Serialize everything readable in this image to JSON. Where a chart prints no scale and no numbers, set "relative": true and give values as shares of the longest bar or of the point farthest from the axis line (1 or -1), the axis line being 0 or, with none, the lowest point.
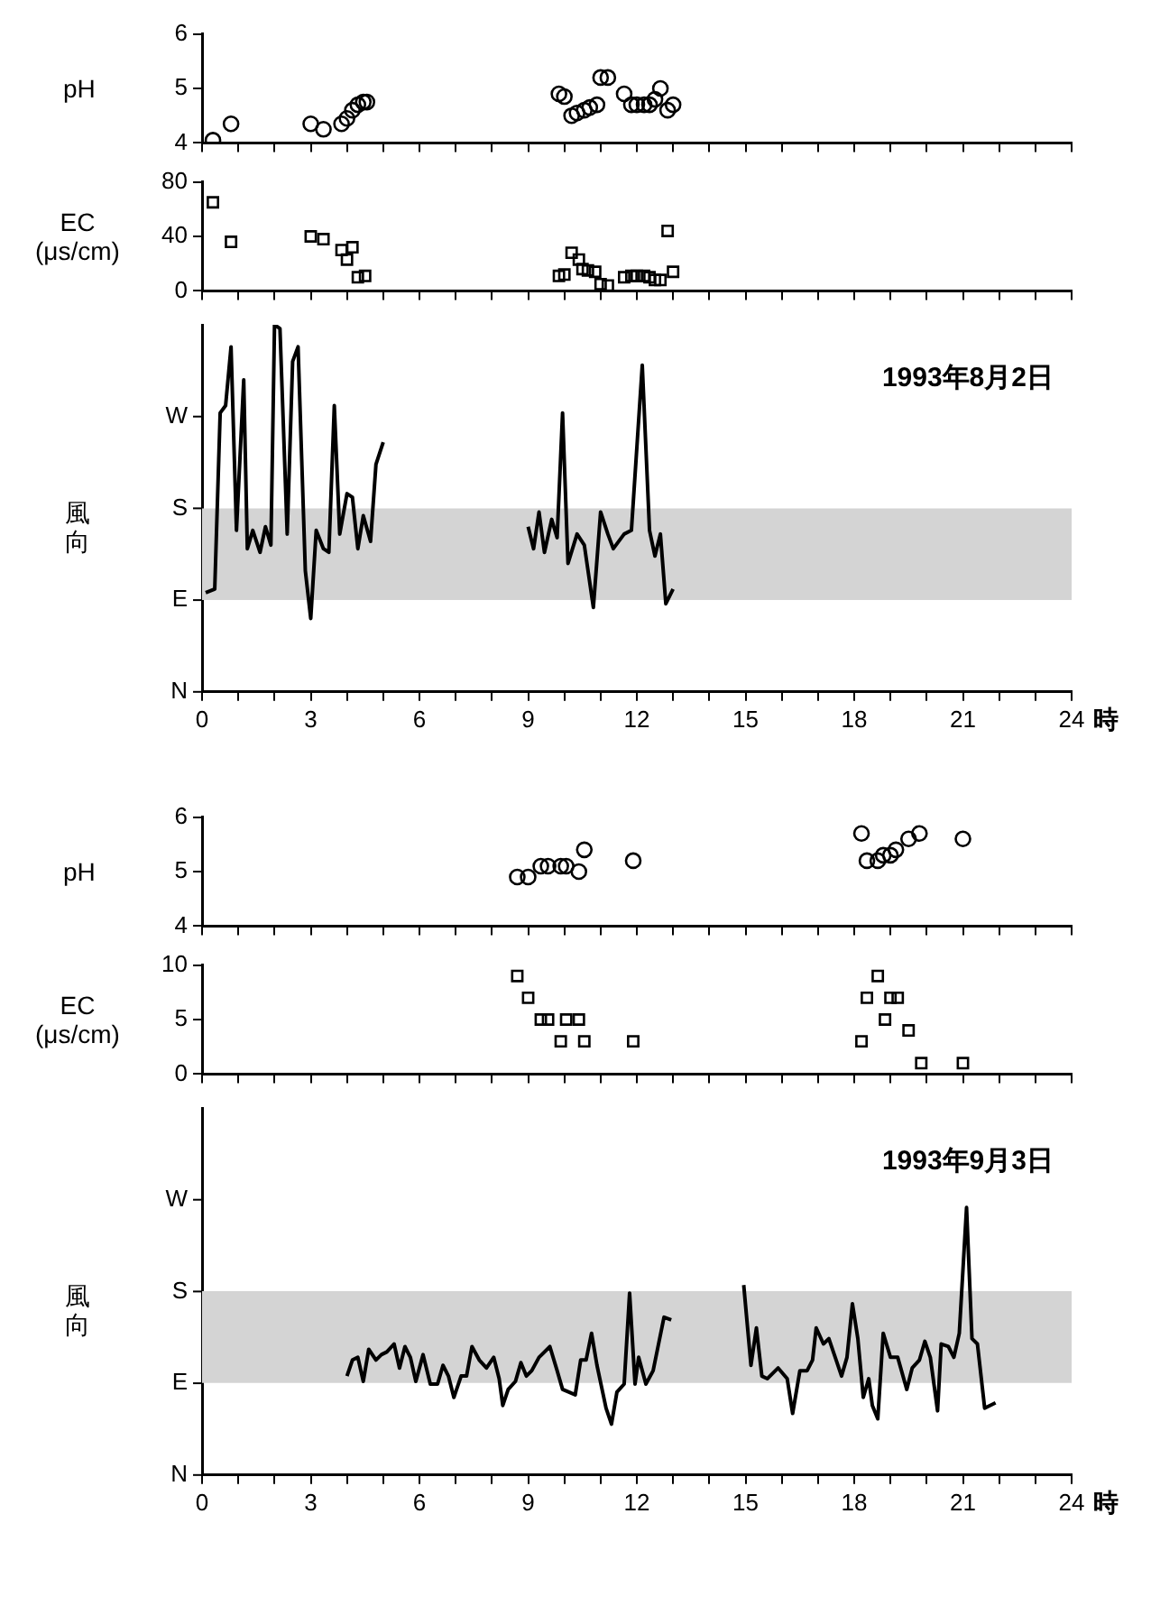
{
  "chart_data": [
    {
      "type": "scatter",
      "ylabel": "pH",
      "marker": "circle",
      "tick_labels": "y",
      "xlim": [
        0,
        24
      ],
      "ylim": [
        4,
        6
      ],
      "yticks": [
        4,
        5,
        6
      ],
      "xticks": [
        0,
        {
          "value": 1,
          "label": null
        },
        {
          "value": 2,
          "label": null
        },
        3,
        {
          "value": 4,
          "label": null
        },
        {
          "value": 5,
          "label": null
        },
        6,
        {
          "value": 7,
          "label": null
        },
        {
          "value": 8,
          "label": null
        },
        9,
        {
          "value": 10,
          "label": null
        },
        {
          "value": 11,
          "label": null
        },
        12,
        {
          "value": 13,
          "label": null
        },
        {
          "value": 14,
          "label": null
        },
        15,
        {
          "value": 16,
          "label": null
        },
        {
          "value": 17,
          "label": null
        },
        18,
        {
          "value": 19,
          "label": null
        },
        {
          "value": 20,
          "label": null
        },
        21,
        {
          "value": 22,
          "label": null
        },
        {
          "value": 23,
          "label": null
        },
        24
      ],
      "series": [
        {
          "color": "#000000",
          "x": [
            0.3,
            0.8,
            3.0,
            3.35,
            3.85,
            4.0,
            4.15,
            4.3,
            4.45,
            4.55,
            9.85,
            10.0,
            10.2,
            10.35,
            10.55,
            10.7,
            10.9,
            11.0,
            11.2,
            11.65,
            11.85,
            12.0,
            12.2,
            12.35,
            12.5,
            12.65,
            12.85,
            13.0
          ],
          "values": [
            4.05,
            4.35,
            4.35,
            4.25,
            4.35,
            4.45,
            4.6,
            4.7,
            4.75,
            4.75,
            4.9,
            4.85,
            4.5,
            4.55,
            4.6,
            4.65,
            4.7,
            5.2,
            5.2,
            4.9,
            4.7,
            4.7,
            4.7,
            4.7,
            4.8,
            5.0,
            4.6,
            4.7
          ]
        }
      ]
    },
    {
      "type": "scatter",
      "ylabel": "EC (μs/cm)",
      "marker": "square",
      "tick_labels": "y",
      "xlim": [
        0,
        24
      ],
      "ylim": [
        0,
        80
      ],
      "yticks": [
        0,
        40,
        80
      ],
      "xticks": [
        0,
        {
          "value": 1,
          "label": null
        },
        {
          "value": 2,
          "label": null
        },
        3,
        {
          "value": 4,
          "label": null
        },
        {
          "value": 5,
          "label": null
        },
        6,
        {
          "value": 7,
          "label": null
        },
        {
          "value": 8,
          "label": null
        },
        9,
        {
          "value": 10,
          "label": null
        },
        {
          "value": 11,
          "label": null
        },
        12,
        {
          "value": 13,
          "label": null
        },
        {
          "value": 14,
          "label": null
        },
        15,
        {
          "value": 16,
          "label": null
        },
        {
          "value": 17,
          "label": null
        },
        18,
        {
          "value": 19,
          "label": null
        },
        {
          "value": 20,
          "label": null
        },
        21,
        {
          "value": 22,
          "label": null
        },
        {
          "value": 23,
          "label": null
        },
        24
      ],
      "series": [
        {
          "color": "#000000",
          "x": [
            0.3,
            0.8,
            3.0,
            3.35,
            3.85,
            4.0,
            4.15,
            4.3,
            4.5,
            9.85,
            10.0,
            10.2,
            10.4,
            10.5,
            10.65,
            10.85,
            11.0,
            11.2,
            11.65,
            11.85,
            12.0,
            12.2,
            12.35,
            12.5,
            12.65,
            12.85,
            13.0
          ],
          "values": [
            65,
            36,
            40,
            38,
            30,
            23,
            32,
            10,
            11,
            11,
            12,
            28,
            23,
            16,
            15,
            14,
            5,
            4,
            10,
            11,
            11,
            11,
            10,
            8,
            8,
            44,
            14
          ]
        }
      ]
    },
    {
      "type": "line",
      "relative": true,
      "ylabel": "風向",
      "xlabel": "時",
      "marker": "none",
      "line_style": "solid",
      "xlim": [
        0,
        24
      ],
      "xticks": [
        0,
        {
          "value": 1,
          "label": null
        },
        {
          "value": 2,
          "label": null
        },
        3,
        {
          "value": 4,
          "label": null
        },
        {
          "value": 5,
          "label": null
        },
        6,
        {
          "value": 7,
          "label": null
        },
        {
          "value": 8,
          "label": null
        },
        9,
        {
          "value": 10,
          "label": null
        },
        {
          "value": 11,
          "label": null
        },
        12,
        {
          "value": 13,
          "label": null
        },
        {
          "value": 14,
          "label": null
        },
        15,
        {
          "value": 16,
          "label": null
        },
        {
          "value": 17,
          "label": null
        },
        18,
        {
          "value": 19,
          "label": null
        },
        {
          "value": 20,
          "label": null
        },
        21,
        {
          "value": 22,
          "label": null
        },
        {
          "value": 23,
          "label": null
        },
        24
      ],
      "bands": [
        {
          "axis": "y",
          "from": 0.25,
          "to": 0.5,
          "color": "#d4d4d4"
        }
      ],
      "annotations": [
        "1993年8月2日",
        "N",
        "E",
        "S",
        "W"
      ],
      "series": [
        {
          "color": "#000000",
          "x": [
            0.1,
            0.35,
            0.5,
            0.65,
            0.8,
            0.95,
            1.15,
            1.25,
            1.4,
            1.6,
            1.75,
            1.9,
            2.0,
            2.15,
            2.35,
            2.5,
            2.65,
            2.85,
            3.0,
            3.15,
            3.35,
            3.5,
            3.65,
            3.8,
            4.0,
            4.15,
            4.3,
            4.45,
            4.65,
            4.8,
            5.0
          ],
          "values": [
            0.27,
            0.28,
            0.76,
            0.78,
            0.94,
            0.44,
            0.85,
            0.39,
            0.44,
            0.38,
            0.45,
            0.4,
            1,
            0.99,
            0.43,
            0.9,
            0.94,
            0.33,
            0.2,
            0.44,
            0.39,
            0.38,
            0.78,
            0.43,
            0.54,
            0.53,
            0.39,
            0.48,
            0.41,
            0.62,
            0.68
          ]
        },
        {
          "color": "#000000",
          "x": [
            9.0,
            9.15,
            9.3,
            9.45,
            9.65,
            9.8,
            9.95,
            10.1,
            10.35,
            10.55,
            10.8,
            11.0,
            11.2,
            11.35,
            11.65,
            11.85,
            12.15,
            12.35,
            12.5,
            12.65,
            12.8,
            13.0
          ],
          "values": [
            0.45,
            0.39,
            0.49,
            0.38,
            0.47,
            0.42,
            0.76,
            0.35,
            0.43,
            0.4,
            0.23,
            0.49,
            0.43,
            0.39,
            0.43,
            0.44,
            0.89,
            0.44,
            0.37,
            0.43,
            0.24,
            0.28
          ]
        }
      ]
    },
    {
      "type": "scatter",
      "ylabel": "pH",
      "marker": "circle",
      "tick_labels": "y",
      "xlim": [
        0,
        24
      ],
      "ylim": [
        4,
        6
      ],
      "yticks": [
        4,
        5,
        6
      ],
      "xticks": [
        0,
        {
          "value": 1,
          "label": null
        },
        {
          "value": 2,
          "label": null
        },
        3,
        {
          "value": 4,
          "label": null
        },
        {
          "value": 5,
          "label": null
        },
        6,
        {
          "value": 7,
          "label": null
        },
        {
          "value": 8,
          "label": null
        },
        9,
        {
          "value": 10,
          "label": null
        },
        {
          "value": 11,
          "label": null
        },
        12,
        {
          "value": 13,
          "label": null
        },
        {
          "value": 14,
          "label": null
        },
        15,
        {
          "value": 16,
          "label": null
        },
        {
          "value": 17,
          "label": null
        },
        18,
        {
          "value": 19,
          "label": null
        },
        {
          "value": 20,
          "label": null
        },
        21,
        {
          "value": 22,
          "label": null
        },
        {
          "value": 23,
          "label": null
        },
        24
      ],
      "series": [
        {
          "color": "#000000",
          "x": [
            8.7,
            9.0,
            9.35,
            9.55,
            9.9,
            10.05,
            10.4,
            10.55,
            11.9,
            18.2,
            18.35,
            18.65,
            18.8,
            19.0,
            19.15,
            19.5,
            19.8,
            21.0
          ],
          "values": [
            4.9,
            4.9,
            5.1,
            5.1,
            5.1,
            5.1,
            5.0,
            5.4,
            5.2,
            5.7,
            5.2,
            5.2,
            5.3,
            5.3,
            5.4,
            5.6,
            5.7,
            5.6
          ]
        }
      ]
    },
    {
      "type": "scatter",
      "ylabel": "EC (μs/cm)",
      "marker": "square",
      "tick_labels": "y",
      "xlim": [
        0,
        24
      ],
      "ylim": [
        0,
        10
      ],
      "yticks": [
        0,
        5,
        10
      ],
      "xticks": [
        0,
        {
          "value": 1,
          "label": null
        },
        {
          "value": 2,
          "label": null
        },
        3,
        {
          "value": 4,
          "label": null
        },
        {
          "value": 5,
          "label": null
        },
        6,
        {
          "value": 7,
          "label": null
        },
        {
          "value": 8,
          "label": null
        },
        9,
        {
          "value": 10,
          "label": null
        },
        {
          "value": 11,
          "label": null
        },
        12,
        {
          "value": 13,
          "label": null
        },
        {
          "value": 14,
          "label": null
        },
        15,
        {
          "value": 16,
          "label": null
        },
        {
          "value": 17,
          "label": null
        },
        18,
        {
          "value": 19,
          "label": null
        },
        {
          "value": 20,
          "label": null
        },
        21,
        {
          "value": 22,
          "label": null
        },
        {
          "value": 23,
          "label": null
        },
        24
      ],
      "series": [
        {
          "color": "#000000",
          "x": [
            8.7,
            9.0,
            9.35,
            9.55,
            9.9,
            10.05,
            10.4,
            10.55,
            11.9,
            18.2,
            18.35,
            18.65,
            18.85,
            19.0,
            19.2,
            19.5,
            19.85,
            21.0
          ],
          "values": [
            9,
            7,
            5,
            5,
            3,
            5,
            5,
            3,
            3,
            3,
            7,
            9,
            5,
            7,
            7,
            4,
            1,
            1
          ]
        }
      ]
    },
    {
      "type": "line",
      "relative": true,
      "ylabel": "風向",
      "xlabel": "時",
      "marker": "none",
      "line_style": "solid",
      "xlim": [
        0,
        24
      ],
      "xticks": [
        0,
        {
          "value": 1,
          "label": null
        },
        {
          "value": 2,
          "label": null
        },
        3,
        {
          "value": 4,
          "label": null
        },
        {
          "value": 5,
          "label": null
        },
        6,
        {
          "value": 7,
          "label": null
        },
        {
          "value": 8,
          "label": null
        },
        9,
        {
          "value": 10,
          "label": null
        },
        {
          "value": 11,
          "label": null
        },
        12,
        {
          "value": 13,
          "label": null
        },
        {
          "value": 14,
          "label": null
        },
        15,
        {
          "value": 16,
          "label": null
        },
        {
          "value": 17,
          "label": null
        },
        18,
        {
          "value": 19,
          "label": null
        },
        {
          "value": 20,
          "label": null
        },
        21,
        {
          "value": 22,
          "label": null
        },
        {
          "value": 23,
          "label": null
        },
        24
      ],
      "bands": [
        {
          "axis": "y",
          "from": 0.344,
          "to": 0.687,
          "color": "#d4d4d4"
        }
      ],
      "annotations": [
        "1993年9月3日",
        "N",
        "E",
        "S",
        "W"
      ],
      "series": [
        {
          "color": "#000000",
          "x": [
            4.0,
            4.15,
            4.3,
            4.45,
            4.6,
            4.8,
            4.95,
            5.1,
            5.3,
            5.45,
            5.6,
            5.75,
            5.9,
            6.1,
            6.3,
            6.5,
            6.65,
            6.8,
            6.95,
            7.15,
            7.3,
            7.45,
            7.65,
            7.85,
            8.05,
            8.2,
            8.3,
            8.45,
            8.65,
            8.8,
            8.95,
            9.1,
            9.3,
            9.6,
            9.8,
            9.95,
            10.3,
            10.45,
            10.6,
            10.75,
            10.9,
            11.15,
            11.3,
            11.45,
            11.65,
            11.8,
            11.95,
            12.05,
            12.25,
            12.45,
            12.75,
            12.95
          ],
          "values": [
            0.37,
            0.43,
            0.44,
            0.35,
            0.47,
            0.43,
            0.45,
            0.46,
            0.49,
            0.4,
            0.48,
            0.44,
            0.35,
            0.45,
            0.34,
            0.34,
            0.41,
            0.37,
            0.29,
            0.37,
            0.37,
            0.48,
            0.43,
            0.4,
            0.44,
            0.36,
            0.26,
            0.32,
            0.35,
            0.42,
            0.37,
            0.39,
            0.44,
            0.48,
            0.39,
            0.32,
            0.3,
            0.43,
            0.43,
            0.53,
            0.41,
            0.25,
            0.19,
            0.31,
            0.34,
            0.68,
            0.34,
            0.44,
            0.34,
            0.39,
            0.59,
            0.58
          ]
        },
        {
          "color": "#000000",
          "x": [
            14.95,
            15.15,
            15.3,
            15.45,
            15.6,
            15.75,
            15.9,
            16.15,
            16.3,
            16.5,
            16.7,
            16.85,
            16.95,
            17.15,
            17.3,
            17.45,
            17.65,
            17.8,
            17.95,
            18.1,
            18.25,
            18.4,
            18.5,
            18.65,
            18.8,
            19.0,
            19.2,
            19.45,
            19.6,
            19.8,
            19.95,
            20.1,
            20.3,
            20.4,
            20.6,
            20.75,
            20.9,
            21.1,
            21.25,
            21.4,
            21.6,
            21.9
          ],
          "values": [
            0.71,
            0.41,
            0.55,
            0.37,
            0.36,
            0.38,
            0.4,
            0.36,
            0.23,
            0.39,
            0.39,
            0.43,
            0.55,
            0.49,
            0.51,
            0.45,
            0.37,
            0.44,
            0.64,
            0.51,
            0.29,
            0.36,
            0.26,
            0.21,
            0.53,
            0.44,
            0.44,
            0.32,
            0.4,
            0.43,
            0.5,
            0.44,
            0.24,
            0.49,
            0.48,
            0.44,
            0.53,
            1,
            0.51,
            0.49,
            0.25,
            0.27
          ]
        }
      ]
    }
  ]
}
